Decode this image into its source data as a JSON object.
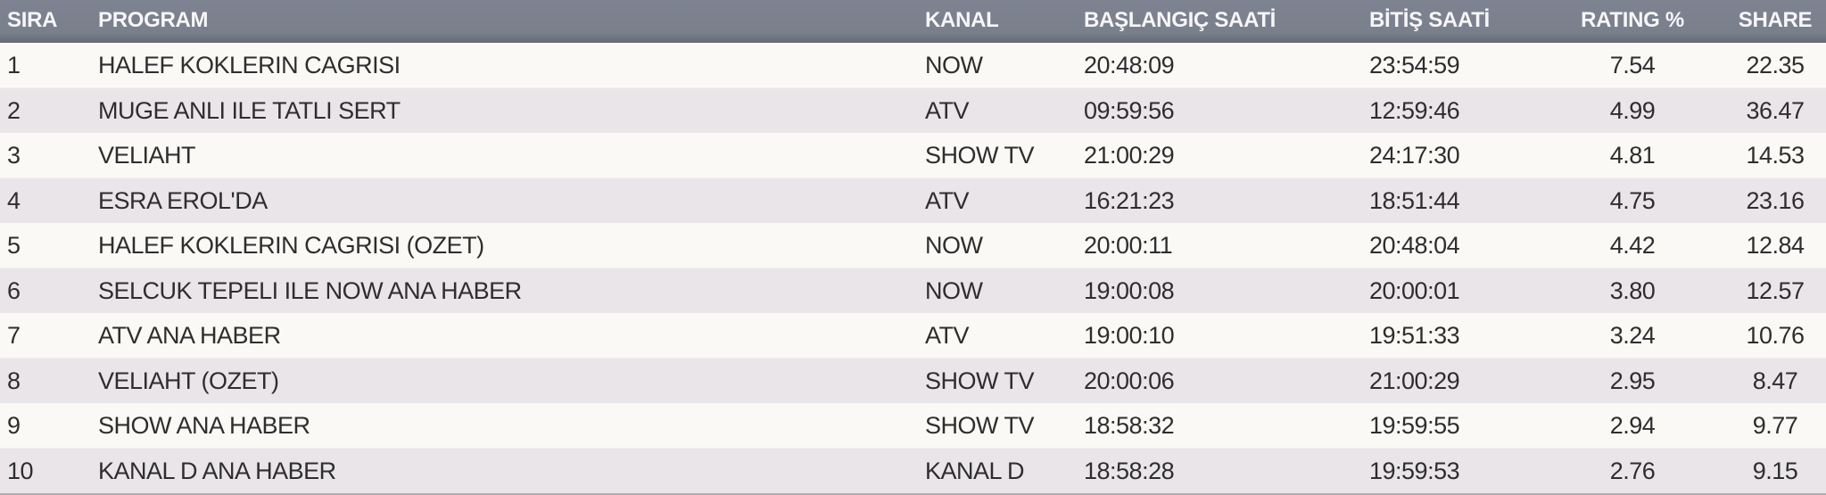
{
  "table": {
    "title": "tv-ratings-table",
    "columns": [
      {
        "key": "sira",
        "label": "SIRA"
      },
      {
        "key": "program",
        "label": "PROGRAM"
      },
      {
        "key": "kanal",
        "label": "KANAL"
      },
      {
        "key": "start",
        "label": "BAŞLANGIÇ SAATİ"
      },
      {
        "key": "end",
        "label": "BİTİŞ SAATİ"
      },
      {
        "key": "rating",
        "label": "RATING %"
      },
      {
        "key": "share",
        "label": "SHARE"
      }
    ],
    "rows": [
      {
        "sira": "1",
        "program": "HALEF KOKLERIN CAGRISI",
        "kanal": "NOW",
        "start": "20:48:09",
        "end": "23:54:59",
        "rating": "7.54",
        "share": "22.35"
      },
      {
        "sira": "2",
        "program": "MUGE ANLI ILE TATLI SERT",
        "kanal": "ATV",
        "start": "09:59:56",
        "end": "12:59:46",
        "rating": "4.99",
        "share": "36.47"
      },
      {
        "sira": "3",
        "program": "VELIAHT",
        "kanal": "SHOW TV",
        "start": "21:00:29",
        "end": "24:17:30",
        "rating": "4.81",
        "share": "14.53"
      },
      {
        "sira": "4",
        "program": "ESRA EROL'DA",
        "kanal": "ATV",
        "start": "16:21:23",
        "end": "18:51:44",
        "rating": "4.75",
        "share": "23.16"
      },
      {
        "sira": "5",
        "program": "HALEF KOKLERIN CAGRISI (OZET)",
        "kanal": "NOW",
        "start": "20:00:11",
        "end": "20:48:04",
        "rating": "4.42",
        "share": "12.84"
      },
      {
        "sira": "6",
        "program": "SELCUK TEPELI ILE NOW ANA HABER",
        "kanal": "NOW",
        "start": "19:00:08",
        "end": "20:00:01",
        "rating": "3.80",
        "share": "12.57"
      },
      {
        "sira": "7",
        "program": "ATV ANA HABER",
        "kanal": "ATV",
        "start": "19:00:10",
        "end": "19:51:33",
        "rating": "3.24",
        "share": "10.76"
      },
      {
        "sira": "8",
        "program": "VELIAHT (OZET)",
        "kanal": "SHOW TV",
        "start": "20:00:06",
        "end": "21:00:29",
        "rating": "2.95",
        "share": "8.47"
      },
      {
        "sira": "9",
        "program": "SHOW ANA HABER",
        "kanal": "SHOW TV",
        "start": "18:58:32",
        "end": "19:59:55",
        "rating": "2.94",
        "share": "9.77"
      },
      {
        "sira": "10",
        "program": "KANAL D ANA HABER",
        "kanal": "KANAL D",
        "start": "18:58:28",
        "end": "19:59:53",
        "rating": "2.76",
        "share": "9.15"
      }
    ]
  },
  "colors": {
    "header_background": "#7a7f8c",
    "header_border_bottom": "#686d7a",
    "header_text": "#f6f6f8",
    "row_odd_background": "#faf9f5",
    "row_even_background": "#e9e5e9",
    "row_text": "#2e2d2f",
    "bottom_border": "#aeabb2"
  }
}
